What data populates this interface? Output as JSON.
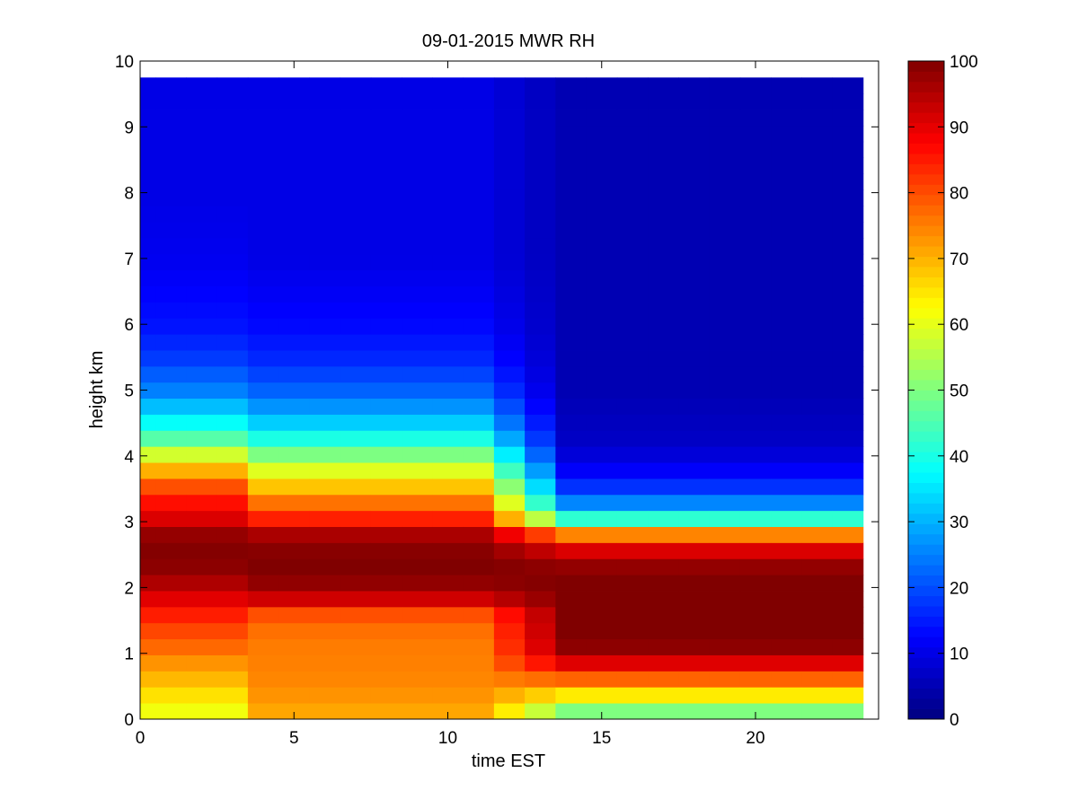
{
  "chart_data": {
    "type": "heatmap",
    "title": "09-01-2015 MWR RH",
    "xlabel": "time EST",
    "ylabel": "height km",
    "xlim": [
      0,
      24
    ],
    "ylim": [
      0,
      10
    ],
    "data_extent": {
      "x": [
        0,
        23.5
      ],
      "y": [
        0,
        9.75
      ]
    },
    "xticks": [
      0,
      5,
      10,
      15,
      20
    ],
    "yticks": [
      0,
      1,
      2,
      3,
      4,
      5,
      6,
      7,
      8,
      9,
      10
    ],
    "colorbar": {
      "min": 0,
      "max": 100,
      "ticks": [
        0,
        10,
        20,
        30,
        40,
        50,
        60,
        70,
        80,
        90,
        100
      ],
      "colormap": "jet"
    },
    "grid": false,
    "time_points": [
      0,
      1,
      2,
      3,
      4,
      5,
      6,
      7,
      8,
      9,
      10,
      11,
      12,
      13,
      14,
      15,
      16,
      17,
      18,
      19,
      20,
      21,
      22,
      23
    ],
    "profiles_rh": {
      "h_km": [
        0,
        0.2,
        0.5,
        0.8,
        1.0,
        1.3,
        1.6,
        1.9,
        2.2,
        2.5,
        2.8,
        3.0,
        3.3,
        3.6,
        3.9,
        4.2,
        4.6,
        5.0,
        5.5,
        6.0,
        7.0,
        8.0,
        9.75
      ],
      "early_t0": [
        60,
        62,
        68,
        72,
        76,
        80,
        85,
        92,
        98,
        100,
        98,
        92,
        86,
        78,
        65,
        48,
        35,
        25,
        18,
        14,
        11,
        10,
        10
      ],
      "mid_t5_t11": [
        70,
        72,
        74,
        75,
        75,
        76,
        80,
        96,
        100,
        100,
        96,
        86,
        76,
        66,
        55,
        42,
        30,
        22,
        16,
        13,
        10,
        10,
        10
      ],
      "late_t15_t23": [
        42,
        55,
        72,
        88,
        98,
        100,
        100,
        100,
        100,
        95,
        75,
        45,
        25,
        15,
        10,
        7,
        6,
        5,
        5,
        5,
        5,
        5,
        5
      ]
    }
  }
}
